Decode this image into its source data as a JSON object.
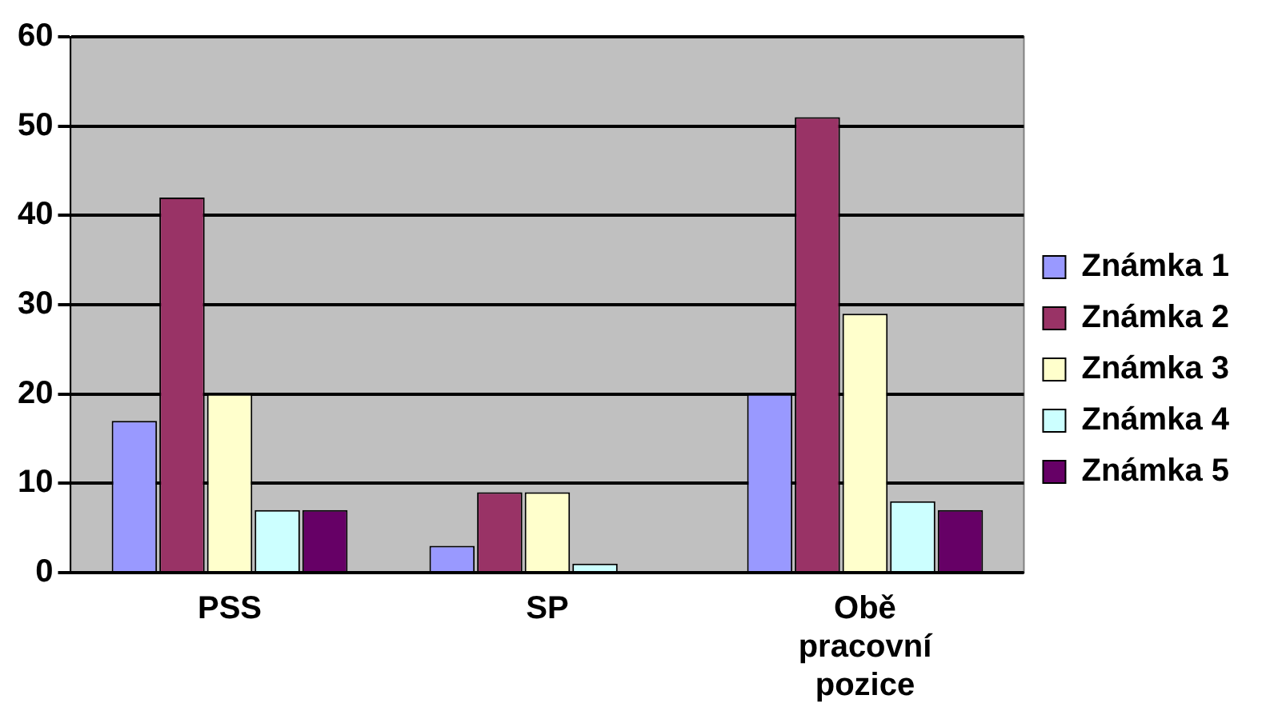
{
  "chart_data": {
    "type": "bar",
    "categories": [
      "PSS",
      "SP",
      "Obě pracovní pozice"
    ],
    "series": [
      {
        "name": "Známka 1",
        "color": "#9999ff",
        "values": [
          17,
          3,
          20
        ]
      },
      {
        "name": "Známka 2",
        "color": "#993366",
        "values": [
          42,
          9,
          51
        ]
      },
      {
        "name": "Známka 3",
        "color": "#ffffcc",
        "values": [
          20,
          9,
          29
        ]
      },
      {
        "name": "Známka 4",
        "color": "#ccffff",
        "values": [
          7,
          1,
          8
        ]
      },
      {
        "name": "Známka 5",
        "color": "#660066",
        "values": [
          7,
          0,
          7
        ]
      }
    ],
    "ylim": [
      0,
      60
    ],
    "yticks": [
      0,
      10,
      20,
      30,
      40,
      50,
      60
    ],
    "grid": "y",
    "legend": "right"
  }
}
